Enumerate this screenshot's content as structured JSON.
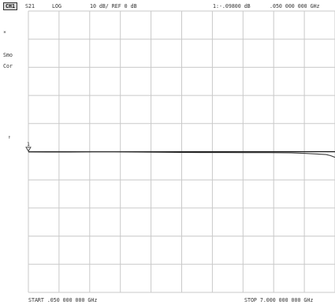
{
  "header": {
    "channel": "CH1",
    "parameter": "S21",
    "format": "LOG",
    "scale": "10 dB/ REF 0 dB",
    "marker_readout": "1:-.09800 dB",
    "marker_frequency": ".050 000 000 GHz"
  },
  "side": {
    "asterisk": "*",
    "smo": "Smo",
    "cor": "Cor",
    "ref_pointer": "↑"
  },
  "footer": {
    "start": "START .050 000 000 GHz",
    "stop": "STOP  7.000 000 000 GHz"
  },
  "marker": {
    "label": "1"
  },
  "colors": {
    "grid": "#c9c9c9",
    "trace": "#3a3a3a",
    "reference": "#111111"
  },
  "chart_data": {
    "type": "line",
    "title": "",
    "xlabel": "",
    "ylabel": "",
    "x_start_ghz": 0.05,
    "x_stop_ghz": 7.0,
    "ref_db": 0,
    "scale_db_per_div": 10,
    "divisions": 10,
    "x_ghz": [
      0.05,
      0.5,
      1.0,
      1.5,
      2.0,
      2.5,
      3.0,
      3.5,
      4.0,
      4.5,
      5.0,
      5.5,
      6.0,
      6.3,
      6.6,
      6.8,
      6.9,
      7.0
    ],
    "y_db": [
      -0.098,
      -0.15,
      -0.1,
      -0.05,
      -0.05,
      -0.15,
      -0.2,
      -0.25,
      -0.3,
      -0.3,
      -0.35,
      -0.35,
      -0.4,
      -0.6,
      -0.8,
      -1.0,
      -1.4,
      -2.0
    ]
  }
}
